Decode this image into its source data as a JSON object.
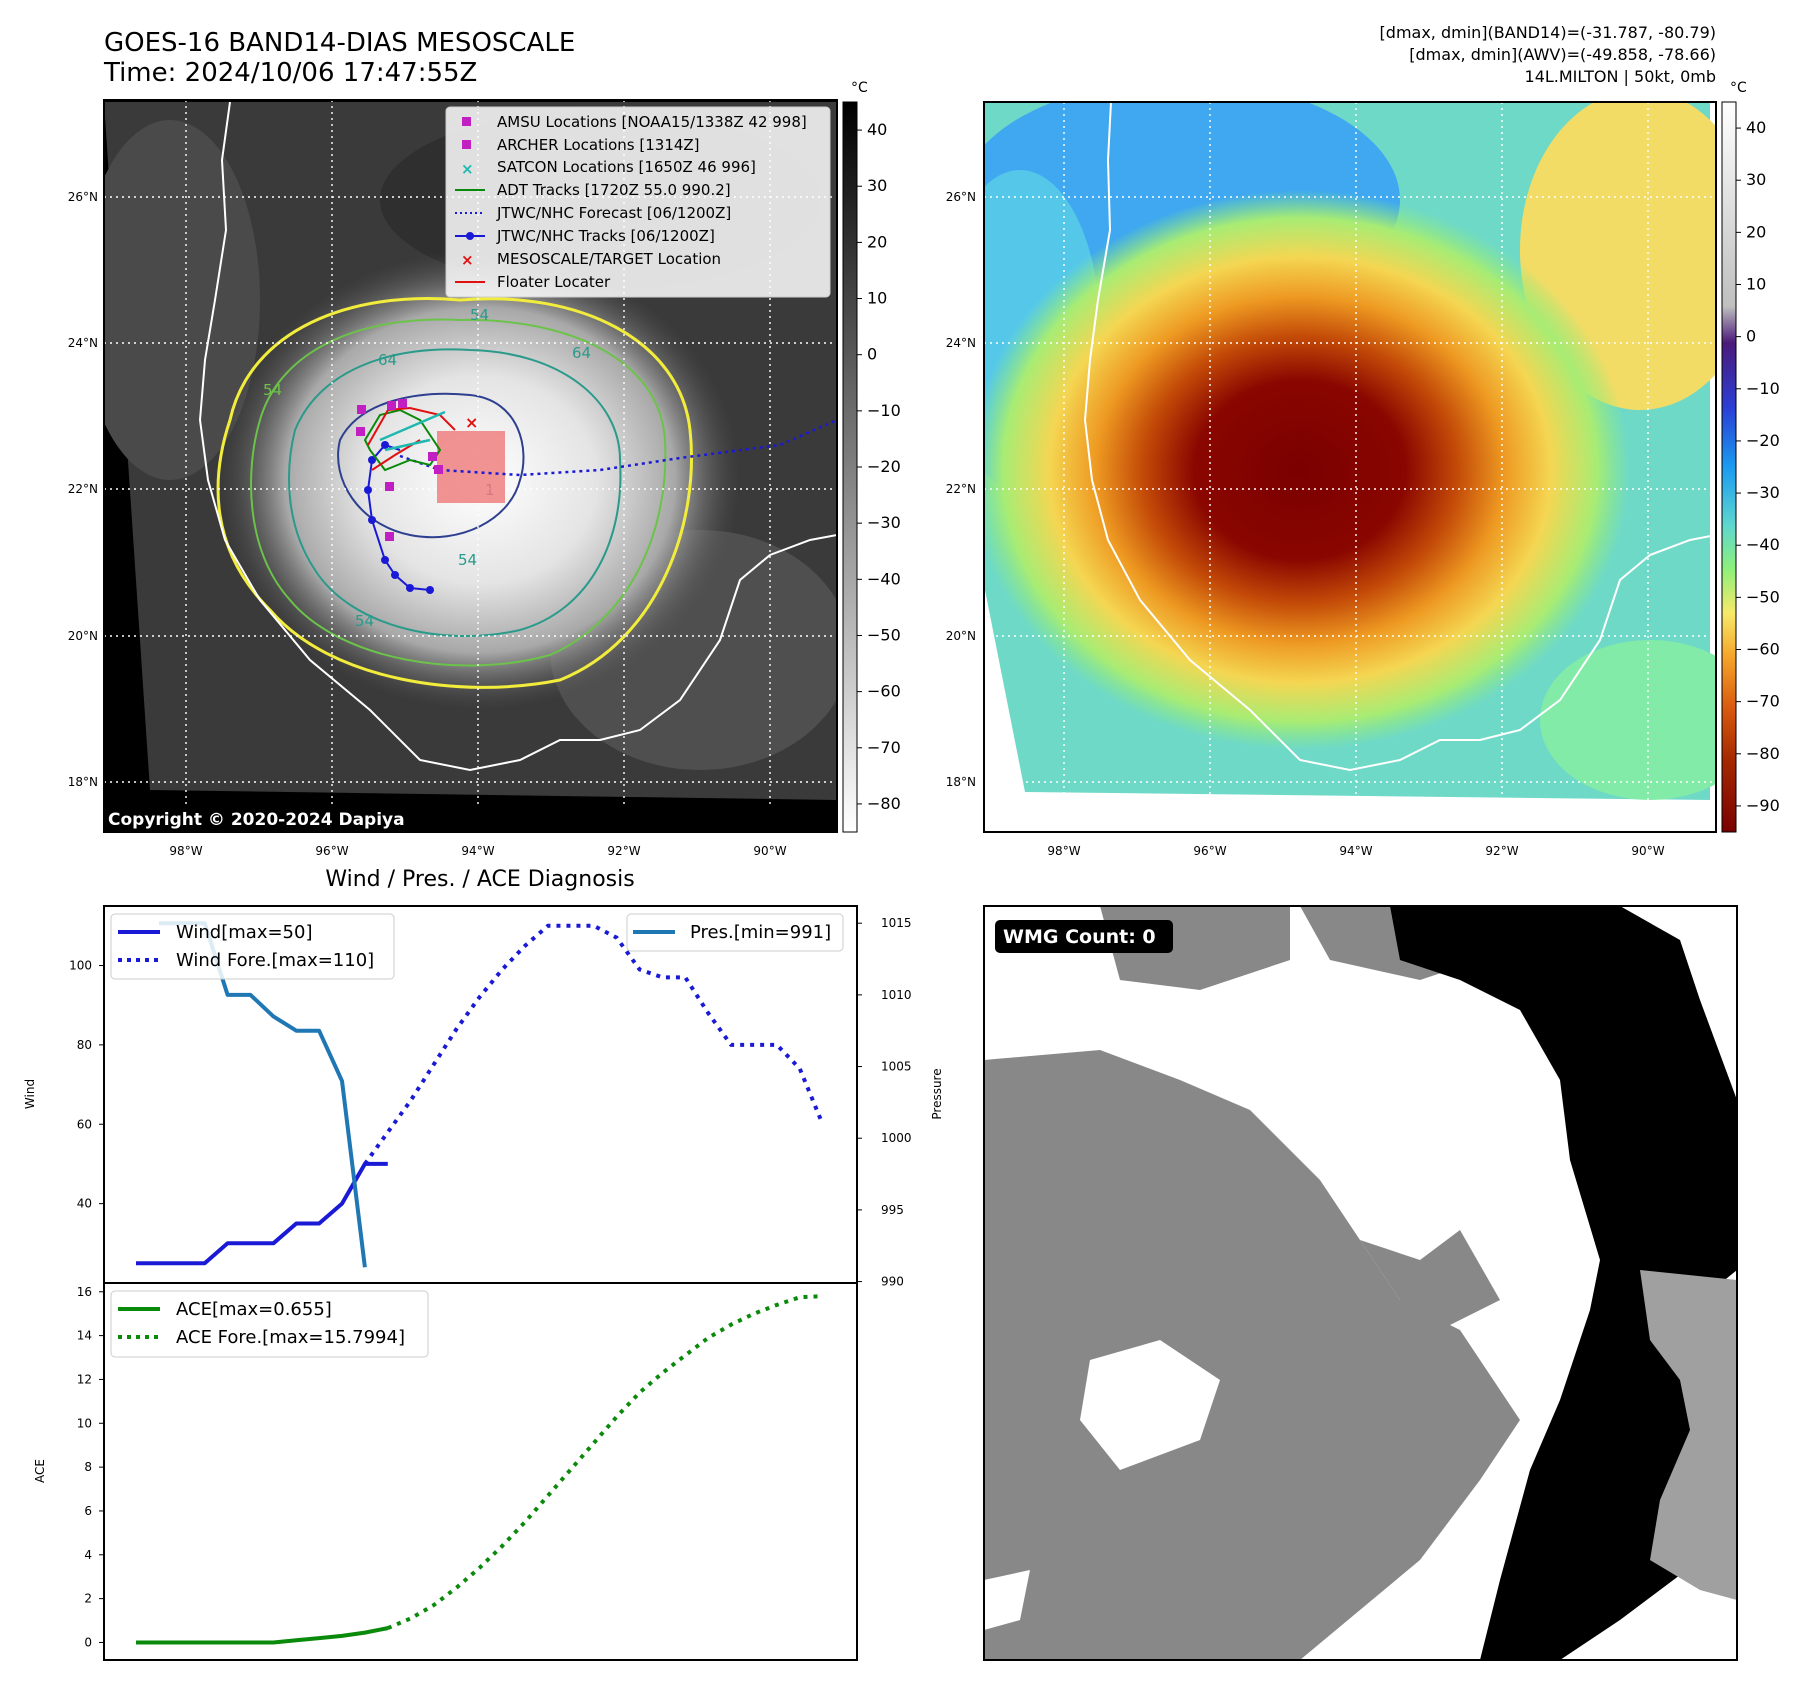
{
  "header": {
    "title_line1": "GOES-16 BAND14-DIAS MESOSCALE",
    "title_line2": "Time: 2024/10/06 17:47:55Z",
    "info_line1": "[dmax, dmin](BAND14)=(-31.787, -80.79)",
    "info_line2": "[dmax, dmin](AWV)=(-49.858, -78.66)",
    "info_line3": "14L.MILTON | 50kt, 0mb"
  },
  "maps": {
    "lat_labels": [
      "26°N",
      "24°N",
      "22°N",
      "20°N",
      "18°N"
    ],
    "lon_labels": [
      "98°W",
      "96°W",
      "94°W",
      "92°W",
      "90°W"
    ],
    "copyright": "Copyright © 2020-2024 Dapiya",
    "contour_labels": [
      "54",
      "64",
      "54",
      "54",
      "54",
      "64",
      "1"
    ],
    "colors": {
      "coast": "#ffffff",
      "grid": "#ffffff",
      "contour_yellow": "#f2ec3c",
      "contour_green": "#6cc24a",
      "contour_teal": "#2a9a8a",
      "contour_navy": "#2e3f8f"
    }
  },
  "legend_map": [
    {
      "label": "AMSU Locations [NOAA15/1338Z 42 998]",
      "marker": "square",
      "color": "#c21fc2"
    },
    {
      "label": "ARCHER Locations [1314Z]",
      "marker": "square",
      "color": "#c21fc2"
    },
    {
      "label": "SATCON Locations [1650Z 46 996]",
      "marker": "x",
      "color": "#1fb8b0"
    },
    {
      "label": "ADT Tracks [1720Z 55.0 990.2]",
      "marker": "line",
      "color": "#0a8a0a"
    },
    {
      "label": "JTWC/NHC Forecast [06/1200Z]",
      "marker": "dotted",
      "color": "#1a1ad6"
    },
    {
      "label": "JTWC/NHC Tracks [06/1200Z]",
      "marker": "linedot",
      "color": "#1a1ad6"
    },
    {
      "label": "MESOSCALE/TARGET Location",
      "marker": "x",
      "color": "#e01010"
    },
    {
      "label": "Floater Locater",
      "marker": "line",
      "color": "#e01010"
    }
  ],
  "colorbar_gray": {
    "unit": "°C",
    "ticks": [
      "40",
      "30",
      "20",
      "10",
      "0",
      "−10",
      "−20",
      "−30",
      "−40",
      "−50",
      "−60",
      "−70",
      "−80"
    ]
  },
  "colorbar_color": {
    "unit": "°C",
    "ticks": [
      "40",
      "30",
      "20",
      "10",
      "0",
      "−10",
      "−20",
      "−30",
      "−40",
      "−50",
      "−60",
      "−70",
      "−80",
      "−90"
    ]
  },
  "wmg": {
    "label": "WMG Count: 0"
  },
  "chart_data": [
    {
      "type": "line",
      "title": "Wind / Pres. / ACE Diagnosis",
      "x": [
        0,
        1,
        2,
        3,
        4,
        5,
        6,
        7,
        8,
        9,
        10,
        11,
        12,
        13,
        14,
        15,
        16,
        17,
        18,
        19,
        20,
        21,
        22,
        23,
        24,
        25,
        26,
        27,
        28,
        29,
        30
      ],
      "xlim": [
        -1.4,
        31.5
      ],
      "ylabel": "Wind",
      "y2label": "Pressure",
      "ylim": [
        20,
        115
      ],
      "y2lim": [
        989.9,
        1016.2
      ],
      "yticks": [
        40,
        60,
        80,
        100
      ],
      "y2ticks": [
        990,
        995,
        1000,
        1005,
        1010,
        1015
      ],
      "series": [
        {
          "name": "Wind[max=50]",
          "axis": "y",
          "style": "solid",
          "color": "#1a1ad6",
          "x": [
            0,
            1,
            2,
            3,
            4,
            5,
            6,
            7,
            8,
            9,
            10,
            11
          ],
          "values": [
            25,
            25,
            25,
            25,
            30,
            30,
            30,
            35,
            35,
            40,
            50,
            50
          ]
        },
        {
          "name": "Wind Fore.[max=110]",
          "axis": "y",
          "style": "dotted",
          "color": "#1a1ad6",
          "x": [
            10,
            11,
            12,
            13,
            14,
            15,
            16,
            17,
            18,
            19,
            20,
            21,
            22,
            23,
            24,
            25,
            26,
            27,
            28,
            29,
            30
          ],
          "values": [
            50,
            58,
            66,
            75,
            84,
            92,
            99,
            105,
            110,
            110,
            110,
            107,
            99,
            97,
            97,
            88,
            80,
            80,
            80,
            74,
            60
          ]
        },
        {
          "name": "Pres.[min=991]",
          "axis": "y2",
          "style": "solid",
          "color": "#1f77b4",
          "x": [
            1,
            2,
            3,
            4,
            5,
            6,
            7,
            8,
            9,
            10
          ],
          "values": [
            1015,
            1015,
            1015,
            1010,
            1010,
            1008.5,
            1007.5,
            1007.5,
            1004,
            991
          ]
        }
      ]
    },
    {
      "type": "line",
      "title": "",
      "x": [
        0,
        1,
        2,
        3,
        4,
        5,
        6,
        7,
        8,
        9,
        10,
        11,
        12,
        13,
        14,
        15,
        16,
        17,
        18,
        19,
        20,
        21,
        22,
        23,
        24,
        25,
        26,
        27,
        28,
        29,
        30
      ],
      "xlim": [
        -1.4,
        31.5
      ],
      "ylabel": "ACE",
      "ylim": [
        -0.8,
        16.4
      ],
      "yticks": [
        0,
        2,
        4,
        6,
        8,
        10,
        12,
        14,
        16
      ],
      "series": [
        {
          "name": "ACE[max=0.655]",
          "style": "solid",
          "color": "#0a8a0a",
          "x": [
            0,
            1,
            2,
            3,
            4,
            5,
            6,
            7,
            8,
            9,
            10,
            11
          ],
          "values": [
            0,
            0,
            0,
            0,
            0,
            0,
            0,
            0.1,
            0.2,
            0.3,
            0.45,
            0.655
          ]
        },
        {
          "name": "ACE Fore.[max=15.7994]",
          "style": "dotted",
          "color": "#0a8a0a",
          "x": [
            11,
            12,
            13,
            14,
            15,
            16,
            17,
            18,
            19,
            20,
            21,
            22,
            23,
            24,
            25,
            26,
            27,
            28,
            29,
            30
          ],
          "values": [
            0.655,
            1.1,
            1.7,
            2.5,
            3.4,
            4.4,
            5.5,
            6.7,
            7.9,
            9.1,
            10.3,
            11.4,
            12.3,
            13.1,
            13.9,
            14.5,
            15.0,
            15.4,
            15.75,
            15.8
          ]
        }
      ]
    }
  ]
}
